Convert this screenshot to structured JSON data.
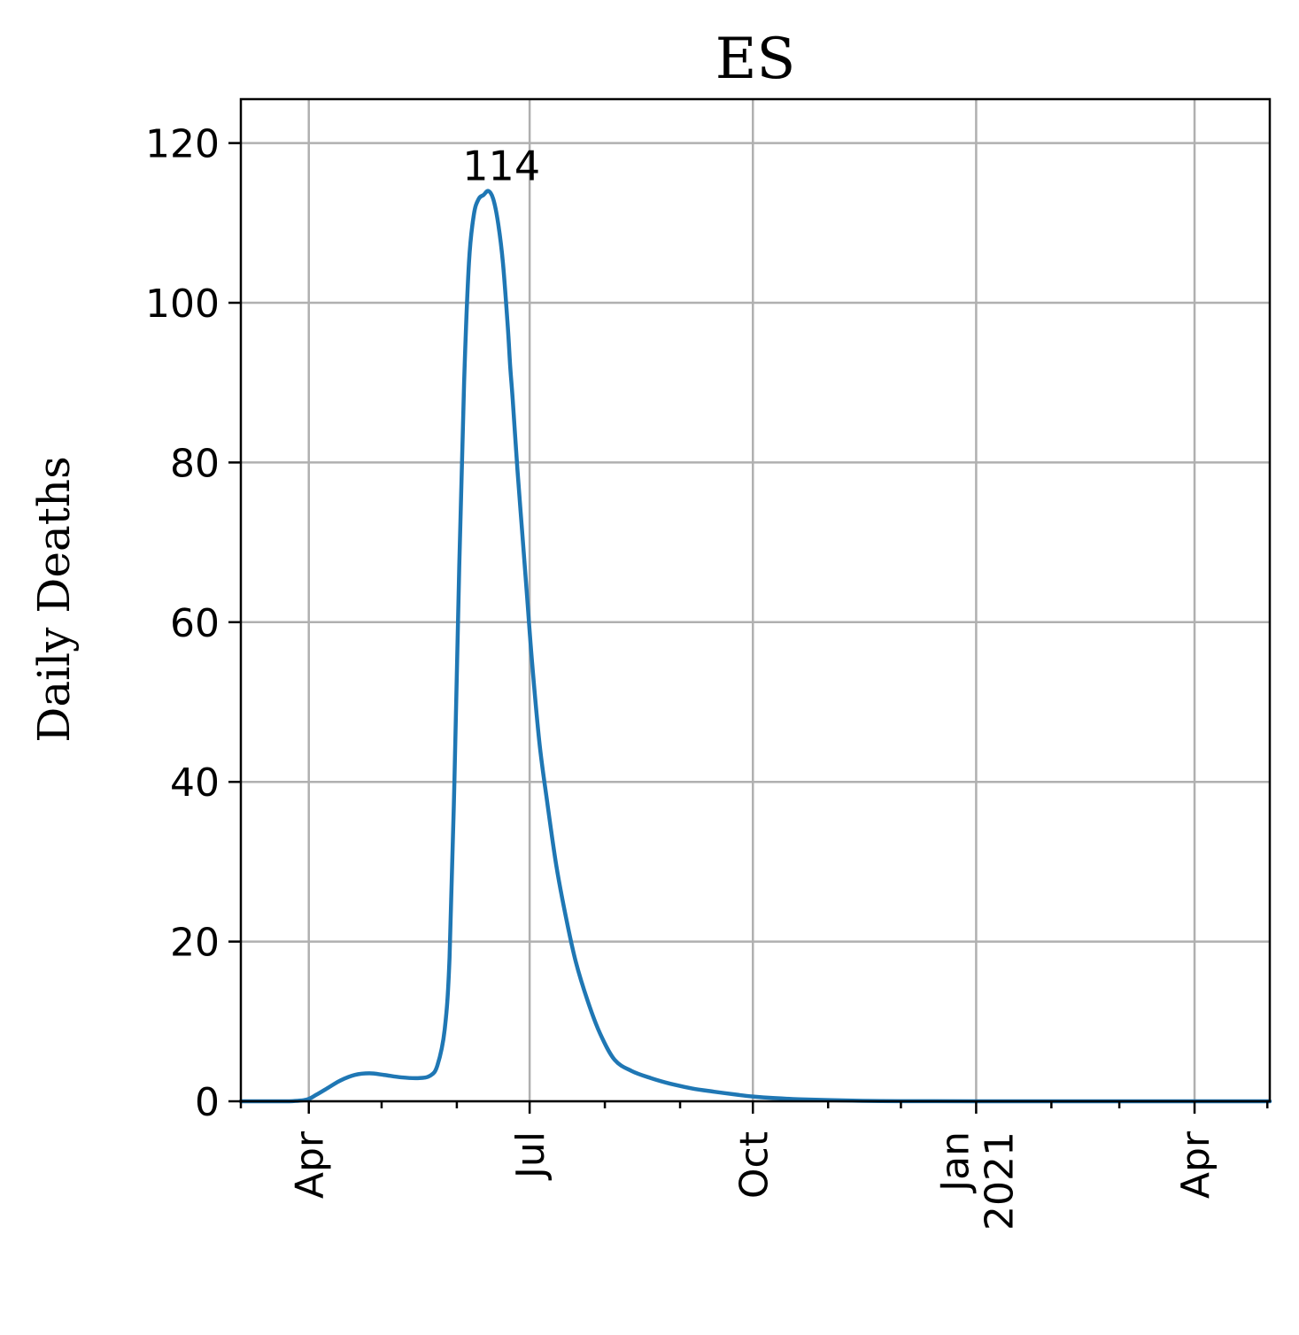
{
  "chart_data": {
    "type": "line",
    "title": "ES",
    "xlabel": "",
    "ylabel": "Daily Deaths",
    "grid": true,
    "x_axis": {
      "type": "date",
      "range": [
        "2020-03-04",
        "2021-05-02"
      ],
      "major_ticks": [
        {
          "date": "2020-04-01",
          "label": "Apr"
        },
        {
          "date": "2020-07-01",
          "label": "Jul"
        },
        {
          "date": "2020-10-01",
          "label": "Oct"
        },
        {
          "date": "2021-01-01",
          "label": "Jan\n2021"
        },
        {
          "date": "2021-04-01",
          "label": "Apr"
        }
      ],
      "minor_ticks": [
        "2020-05-01",
        "2020-06-01",
        "2020-08-01",
        "2020-09-01",
        "2020-11-01",
        "2020-12-01",
        "2021-02-01",
        "2021-03-01",
        "2021-05-01"
      ]
    },
    "y_axis": {
      "range": [
        0,
        125.5
      ],
      "ticks": [
        0,
        20,
        40,
        60,
        80,
        100,
        120
      ]
    },
    "annotations": [
      {
        "text": "114",
        "x": "2020-06-23",
        "y": 114
      }
    ],
    "series": [
      {
        "color": "#1f77b4",
        "x": [
          "2020-03-04",
          "2020-03-14",
          "2020-03-24",
          "2020-03-31",
          "2020-04-04",
          "2020-04-09",
          "2020-04-14",
          "2020-04-20",
          "2020-04-26",
          "2020-05-02",
          "2020-05-09",
          "2020-05-16",
          "2020-05-21",
          "2020-05-24",
          "2020-05-27",
          "2020-05-29",
          "2020-05-31",
          "2020-06-02",
          "2020-06-04",
          "2020-06-06",
          "2020-06-08",
          "2020-06-10",
          "2020-06-12",
          "2020-06-14",
          "2020-06-16",
          "2020-06-18",
          "2020-06-20",
          "2020-06-22",
          "2020-06-23",
          "2020-06-24",
          "2020-06-26",
          "2020-06-28",
          "2020-06-30",
          "2020-07-02",
          "2020-07-05",
          "2020-07-08",
          "2020-07-12",
          "2020-07-16",
          "2020-07-20",
          "2020-07-25",
          "2020-07-30",
          "2020-08-05",
          "2020-08-12",
          "2020-08-20",
          "2020-08-28",
          "2020-09-06",
          "2020-09-15",
          "2020-09-25",
          "2020-10-01",
          "2020-10-10",
          "2020-10-20",
          "2020-11-01",
          "2020-11-15",
          "2020-12-01",
          "2020-12-15",
          "2021-01-01",
          "2021-01-20",
          "2021-02-10",
          "2021-03-01",
          "2021-03-20",
          "2021-04-10",
          "2021-05-02"
        ],
        "y": [
          0,
          0,
          0,
          0.2,
          0.8,
          1.7,
          2.6,
          3.3,
          3.5,
          3.3,
          3.0,
          2.9,
          3.2,
          4.5,
          9,
          18,
          40,
          67,
          90,
          105,
          111,
          113,
          113.5,
          114,
          113,
          110,
          105,
          97,
          92,
          88,
          79,
          71,
          63,
          55,
          45,
          38,
          29.5,
          23,
          17.5,
          12.5,
          8.5,
          5.2,
          3.8,
          2.9,
          2.2,
          1.6,
          1.2,
          0.8,
          0.6,
          0.4,
          0.25,
          0.15,
          0.05,
          0.02,
          0.01,
          0,
          0,
          0,
          0,
          0,
          0,
          0
        ]
      }
    ]
  }
}
